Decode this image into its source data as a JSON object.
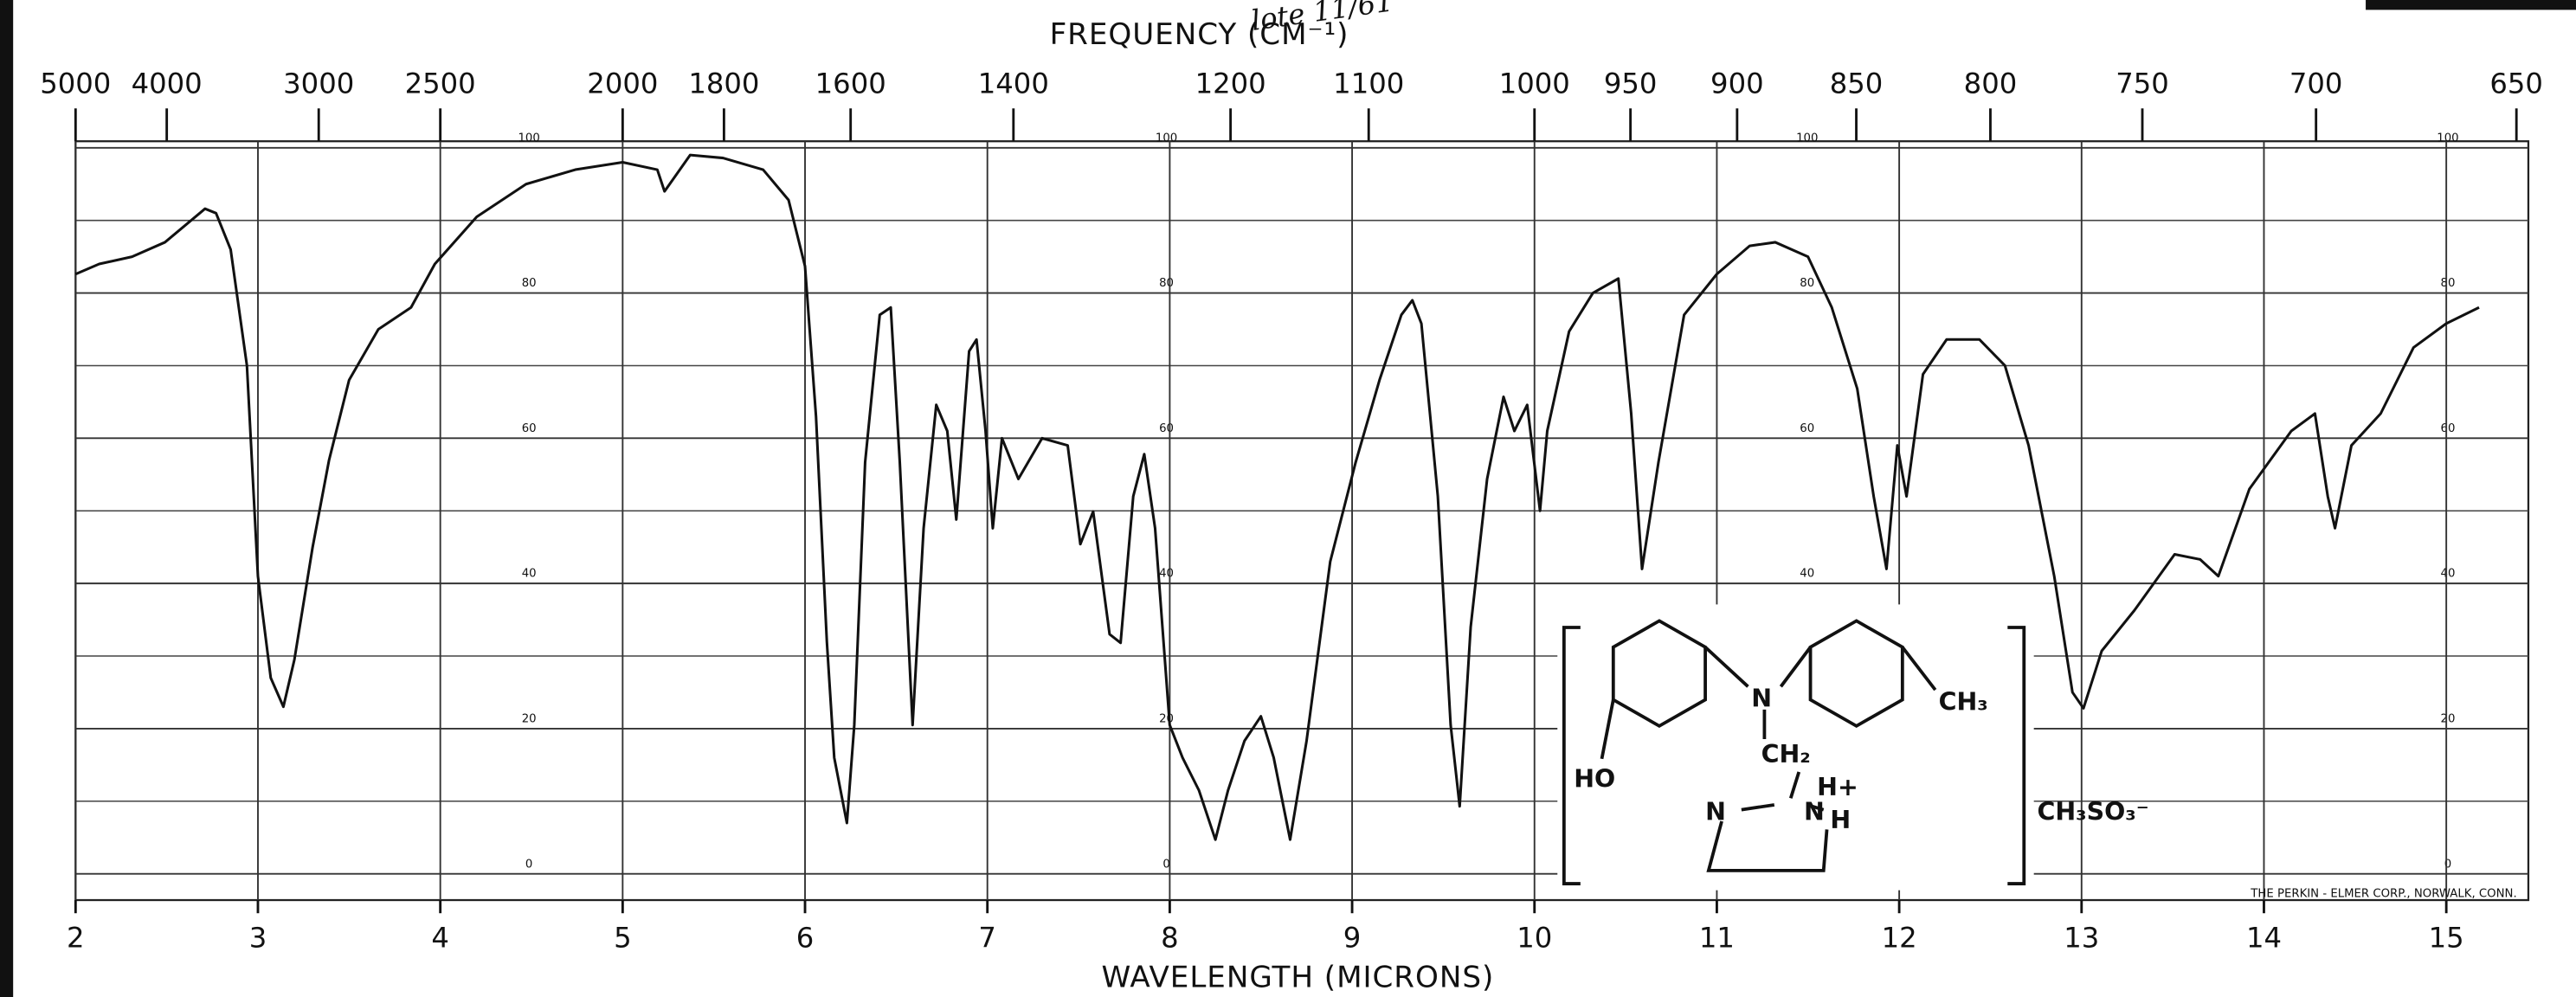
{
  "chart_data": {
    "type": "line",
    "title": "FREQUENCY (CM⁻¹)",
    "x_label": "WAVELENGTH (MICRONS)",
    "annotation": "lote 11/61",
    "credit": "THE PERKIN - ELMER CORP., NORWALK, CONN.",
    "color": "#111111",
    "xlim": [
      2,
      15.45
    ],
    "ylim": [
      0,
      100
    ],
    "xticks": [
      2,
      3,
      4,
      5,
      6,
      7,
      8,
      9,
      10,
      11,
      12,
      13,
      14,
      15
    ],
    "yticks": [
      0,
      20,
      40,
      60,
      80,
      100
    ],
    "ygrid": [
      10,
      30,
      50,
      70,
      90
    ],
    "x2ticks": [
      5000,
      4000,
      3000,
      2500,
      2000,
      1800,
      1600,
      1400,
      1200,
      1100,
      1000,
      950,
      900,
      850,
      800,
      750,
      700,
      650
    ],
    "grid": true,
    "x": [
      2.0,
      2.13,
      2.31,
      2.49,
      2.71,
      2.77,
      2.85,
      2.94,
      3.0,
      3.07,
      3.14,
      3.2,
      3.3,
      3.39,
      3.5,
      3.66,
      3.84,
      3.97,
      4.2,
      4.47,
      4.74,
      5.0,
      5.19,
      5.23,
      5.37,
      5.55,
      5.77,
      5.91,
      6.0,
      6.06,
      6.12,
      6.16,
      6.23,
      6.27,
      6.33,
      6.41,
      6.47,
      6.52,
      6.59,
      6.65,
      6.72,
      6.78,
      6.83,
      6.9,
      6.94,
      6.99,
      7.03,
      7.08,
      7.17,
      7.3,
      7.44,
      7.51,
      7.58,
      7.67,
      7.73,
      7.8,
      7.86,
      7.92,
      8.0,
      8.07,
      8.16,
      8.25,
      8.32,
      8.41,
      8.5,
      8.57,
      8.66,
      8.75,
      8.88,
      9.02,
      9.15,
      9.27,
      9.33,
      9.38,
      9.47,
      9.54,
      9.59,
      9.65,
      9.74,
      9.83,
      9.89,
      9.96,
      10.03,
      10.07,
      10.19,
      10.32,
      10.46,
      10.53,
      10.59,
      10.68,
      10.82,
      11.0,
      11.18,
      11.32,
      11.5,
      11.63,
      11.77,
      11.86,
      11.93,
      11.99,
      12.04,
      12.13,
      12.26,
      12.44,
      12.58,
      12.71,
      12.85,
      12.95,
      13.01,
      13.11,
      13.29,
      13.51,
      13.65,
      13.75,
      13.92,
      14.15,
      14.28,
      14.35,
      14.39,
      14.48,
      14.64,
      14.82,
      15.0,
      15.18
    ],
    "values": [
      82.6,
      84,
      85,
      87,
      91.6,
      91,
      86,
      70,
      41,
      27,
      23,
      29.5,
      45,
      57,
      68,
      75,
      78,
      84,
      90.5,
      95,
      97,
      98,
      97,
      94,
      99,
      98.6,
      97,
      92.8,
      83.7,
      63,
      32,
      16,
      7,
      20.5,
      56.7,
      77,
      78,
      56.7,
      20.5,
      47.6,
      64.6,
      61,
      48.8,
      72,
      73.6,
      61,
      47.6,
      60,
      54.4,
      60,
      59,
      45.4,
      49.9,
      33,
      31.8,
      52,
      57.8,
      47.6,
      20.5,
      16,
      11.5,
      4.7,
      11.5,
      18.3,
      21.7,
      16,
      4.7,
      18.3,
      43,
      56.7,
      68,
      77,
      79,
      75.8,
      52,
      20.5,
      9.3,
      34,
      54.4,
      65.7,
      61,
      64.6,
      50,
      61,
      74.7,
      80,
      82,
      63.4,
      42,
      56.7,
      77,
      82.6,
      86.5,
      87,
      85,
      78,
      66.8,
      52,
      42,
      59,
      52,
      68.8,
      73.6,
      73.6,
      70,
      59,
      41,
      25,
      22.8,
      30.7,
      36.3,
      44,
      43.3,
      41,
      53,
      61,
      63.4,
      52,
      47.6,
      59,
      63.4,
      72.5,
      75.8,
      78
    ]
  },
  "structure": {
    "hydroxyl": "HO",
    "amine": "N",
    "methyl": "CH₃",
    "methylene": "CH₂",
    "ring_n": "N",
    "ring_nh": "N",
    "h_plus": "H+",
    "h": "H",
    "anion": "CH₃SO₃⁻"
  }
}
